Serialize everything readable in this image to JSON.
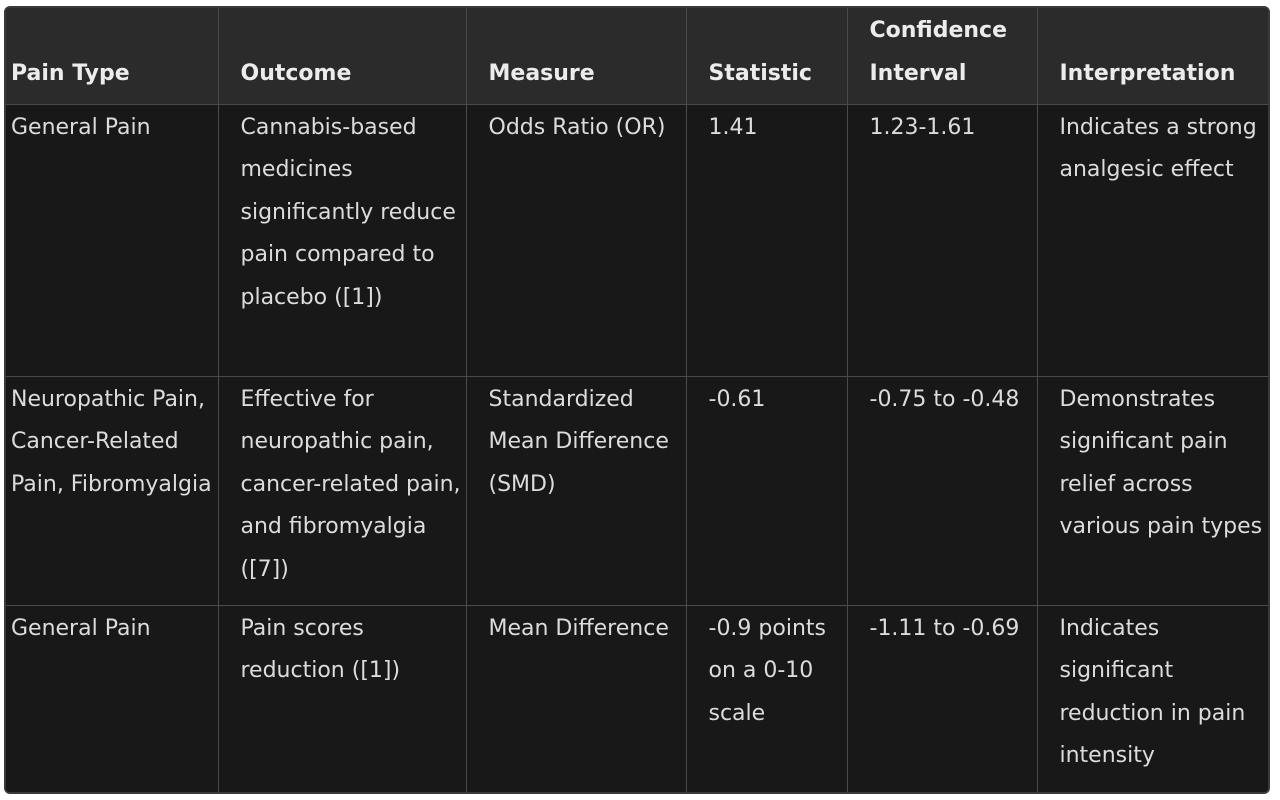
{
  "table": {
    "headers": [
      "Pain Type",
      "Outcome",
      "Measure",
      "Statistic",
      "Confidence Interval",
      "Interpretation"
    ],
    "rows": [
      {
        "pain_type": "General Pain",
        "outcome": "Cannabis-based medicines significantly reduce pain compared to placebo ([1])",
        "measure": "Odds Ratio (OR)",
        "statistic": "1.41",
        "confidence_interval": "1.23-1.61",
        "interpretation": "Indicates a strong analgesic effect"
      },
      {
        "pain_type": "Neuropathic Pain, Cancer-Related Pain, Fibromyalgia",
        "outcome": "Effective for neuropathic pain, cancer-related pain, and fibromyalgia ([7])",
        "measure": "Standardized Mean Difference (SMD)",
        "statistic": "-0.61",
        "confidence_interval": "-0.75 to -0.48",
        "interpretation": "Demonstrates significant pain relief across various pain types"
      },
      {
        "pain_type": "General Pain",
        "outcome": "Pain scores reduction ([1])",
        "measure": "Mean Difference",
        "statistic": "-0.9 points on a 0-10 scale",
        "confidence_interval": "-1.11 to -0.69",
        "interpretation": "Indicates significant reduction in pain intensity"
      }
    ]
  }
}
